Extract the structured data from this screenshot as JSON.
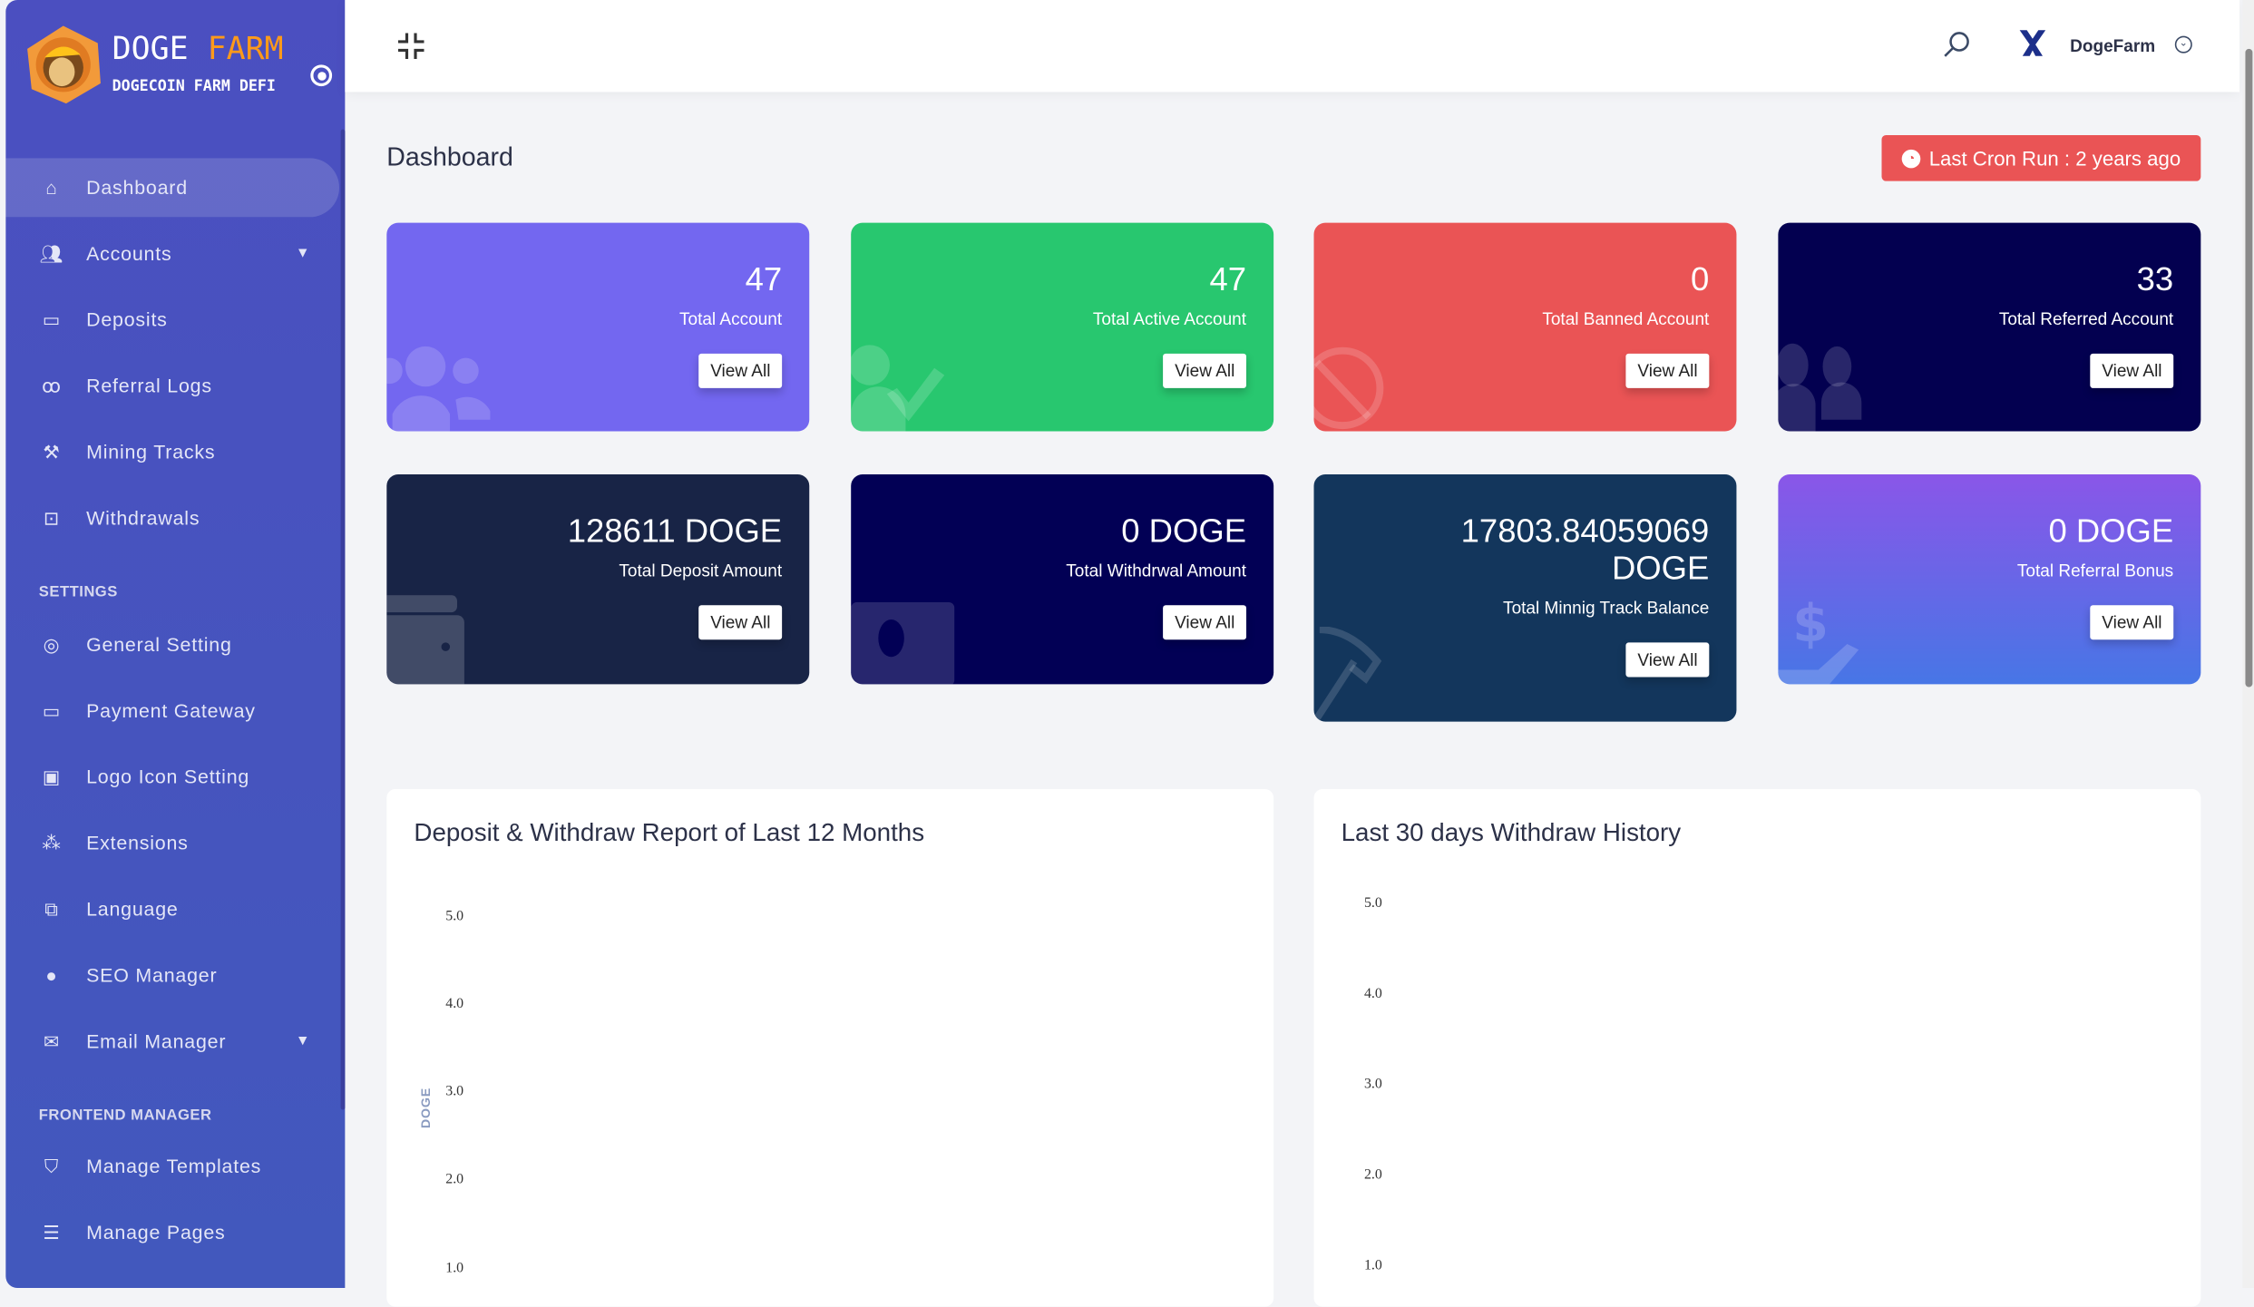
{
  "brand": {
    "name_part1": "DOGE",
    "name_part2": "FARM",
    "tagline": "DOGECOIN FARM DEFI"
  },
  "sidebar": {
    "items": [
      {
        "label": "Dashboard",
        "icon": "home-icon",
        "active": true
      },
      {
        "label": "Accounts",
        "icon": "users-icon",
        "has_submenu": true
      },
      {
        "label": "Deposits",
        "icon": "wallet-icon"
      },
      {
        "label": "Referral Logs",
        "icon": "referral-icon"
      },
      {
        "label": "Mining Tracks",
        "icon": "hammer-icon"
      },
      {
        "label": "Withdrawals",
        "icon": "money-icon"
      }
    ],
    "settings_heading": "SETTINGS",
    "settings_items": [
      {
        "label": "General Setting",
        "icon": "life-ring-icon"
      },
      {
        "label": "Payment Gateway",
        "icon": "credit-card-icon"
      },
      {
        "label": "Logo Icon Setting",
        "icon": "images-icon"
      },
      {
        "label": "Extensions",
        "icon": "cogs-icon"
      },
      {
        "label": "Language",
        "icon": "language-icon"
      },
      {
        "label": "SEO Manager",
        "icon": "globe-icon"
      },
      {
        "label": "Email Manager",
        "icon": "envelope-icon",
        "has_submenu": true
      }
    ],
    "frontend_heading": "FRONTEND MANAGER",
    "frontend_items": [
      {
        "label": "Manage Templates",
        "icon": "html5-icon"
      },
      {
        "label": "Manage Pages",
        "icon": "list-icon"
      }
    ]
  },
  "header": {
    "username": "DogeFarm"
  },
  "page": {
    "title": "Dashboard",
    "cron_label": "Last Cron Run : 2 years ago"
  },
  "cards": [
    {
      "value": "47",
      "label": "Total Account",
      "button": "View All",
      "color": "#7367f0"
    },
    {
      "value": "47",
      "label": "Total Active Account",
      "button": "View All",
      "color": "#28c76f"
    },
    {
      "value": "0",
      "label": "Total Banned Account",
      "button": "View All",
      "color": "#ea5455"
    },
    {
      "value": "33",
      "label": "Total Referred Account",
      "button": "View All",
      "color": "#030050"
    },
    {
      "value": "128611 DOGE",
      "label": "Total Deposit Amount",
      "button": "View All",
      "color": "#182446"
    },
    {
      "value": "0 DOGE",
      "label": "Total Withdrwal Amount",
      "button": "View All",
      "color": "#020055"
    },
    {
      "value": "17803.84059069 DOGE",
      "label": "Total Minnig Track Balance",
      "button": "View All",
      "color": "#13365c"
    },
    {
      "value": "0 DOGE",
      "label": "Total Referral Bonus",
      "button": "View All",
      "color": "#8a56e8"
    }
  ],
  "chart_data": [
    {
      "type": "line",
      "title": "Deposit & Withdraw Report of Last 12 Months",
      "ylabel": "DOGE",
      "yticks": [
        "5.0",
        "4.0",
        "3.0",
        "2.0",
        "1.0"
      ],
      "series": []
    },
    {
      "type": "line",
      "title": "Last 30 days Withdraw History",
      "yticks": [
        "5.0",
        "4.0",
        "3.0",
        "2.0",
        "1.0"
      ],
      "series": []
    }
  ]
}
